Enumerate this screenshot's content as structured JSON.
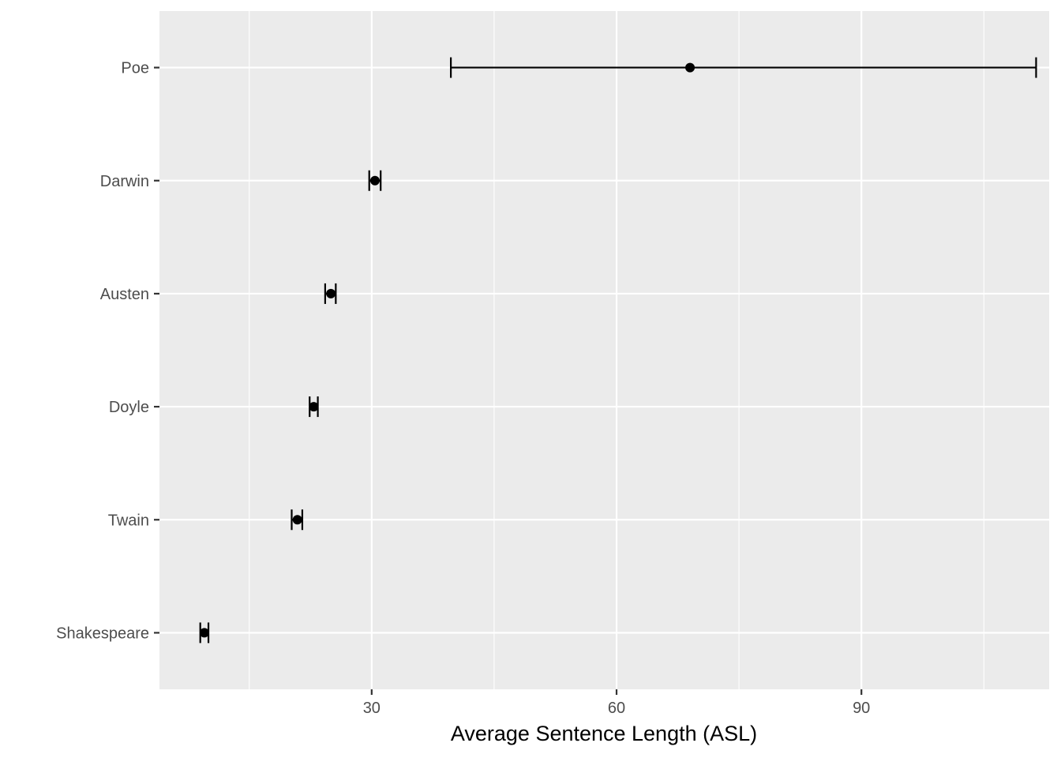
{
  "chart_data": {
    "type": "scatter",
    "xlabel": "Average Sentence Length (ASL)",
    "ylabel": "",
    "xlim": [
      4.0,
      113.0
    ],
    "x_ticks": [
      30,
      60,
      90
    ],
    "categories": [
      "Shakespeare",
      "Twain",
      "Doyle",
      "Austen",
      "Darwin",
      "Poe"
    ],
    "points": [
      {
        "author": "Shakespeare",
        "x": 9.5,
        "lower": 9.0,
        "upper": 10.0
      },
      {
        "author": "Twain",
        "x": 20.9,
        "lower": 20.2,
        "upper": 21.5
      },
      {
        "author": "Doyle",
        "x": 22.9,
        "lower": 22.4,
        "upper": 23.4
      },
      {
        "author": "Austen",
        "x": 25.0,
        "lower": 24.3,
        "upper": 25.6
      },
      {
        "author": "Darwin",
        "x": 30.4,
        "lower": 29.7,
        "upper": 31.1
      },
      {
        "author": "Poe",
        "x": 69.0,
        "lower": 39.7,
        "upper": 111.4
      }
    ],
    "grid": true,
    "panel_background": "#ebebeb",
    "grid_color": "#ffffff",
    "point_color": "#000000"
  }
}
